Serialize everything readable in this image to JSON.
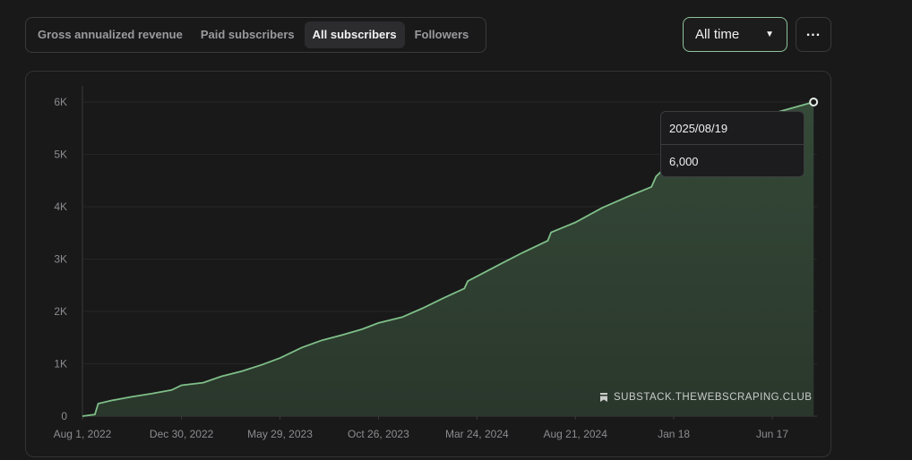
{
  "tabs": [
    {
      "label": "Gross annualized revenue",
      "active": false
    },
    {
      "label": "Paid subscribers",
      "active": false
    },
    {
      "label": "All subscribers",
      "active": true
    },
    {
      "label": "Followers",
      "active": false
    }
  ],
  "range_select": {
    "value": "All time"
  },
  "more_button": {
    "icon": "more-horizontal-icon"
  },
  "tooltip": {
    "date": "2025/08/19",
    "value": "6,000"
  },
  "watermark": {
    "text": "SUBSTACK.THEWEBSCRAPING.CLUB",
    "icon": "bookmark-icon"
  },
  "colors": {
    "line": "#7fbf88",
    "fill": "#2e3f31",
    "accent": "#8fc19a",
    "background": "#19191a"
  },
  "chart_data": {
    "type": "area",
    "title": "",
    "xlabel": "",
    "ylabel": "",
    "ylim": [
      0,
      6000
    ],
    "yticks": [
      0,
      1000,
      2000,
      3000,
      4000,
      5000,
      6000
    ],
    "ytick_labels": [
      "0",
      "1K",
      "2K",
      "3K",
      "4K",
      "5K",
      "6K"
    ],
    "xtick_dates": [
      "2022-08-01",
      "2022-12-30",
      "2023-05-29",
      "2023-10-26",
      "2024-03-24",
      "2024-08-21",
      "2025-01-18",
      "2025-06-17"
    ],
    "xtick_labels": [
      "Aug 1, 2022",
      "Dec 30, 2022",
      "May 29, 2023",
      "Oct 26, 2023",
      "Mar 24, 2024",
      "Aug 21, 2024",
      "Jan 18",
      "Jun 17"
    ],
    "grid": true,
    "series": [
      {
        "points": [
          [
            "2022-08-01",
            0
          ],
          [
            "2022-08-20",
            30
          ],
          [
            "2022-08-25",
            240
          ],
          [
            "2022-09-15",
            300
          ],
          [
            "2022-10-15",
            370
          ],
          [
            "2022-11-15",
            430
          ],
          [
            "2022-12-15",
            500
          ],
          [
            "2022-12-30",
            590
          ],
          [
            "2023-02-01",
            640
          ],
          [
            "2023-03-01",
            760
          ],
          [
            "2023-04-01",
            860
          ],
          [
            "2023-05-01",
            980
          ],
          [
            "2023-05-29",
            1110
          ],
          [
            "2023-07-01",
            1310
          ],
          [
            "2023-08-01",
            1450
          ],
          [
            "2023-09-01",
            1550
          ],
          [
            "2023-10-01",
            1660
          ],
          [
            "2023-10-26",
            1780
          ],
          [
            "2023-12-01",
            1890
          ],
          [
            "2024-01-01",
            2060
          ],
          [
            "2024-02-01",
            2250
          ],
          [
            "2024-03-05",
            2440
          ],
          [
            "2024-03-10",
            2580
          ],
          [
            "2024-03-24",
            2670
          ],
          [
            "2024-05-01",
            2920
          ],
          [
            "2024-06-01",
            3120
          ],
          [
            "2024-07-10",
            3350
          ],
          [
            "2024-07-15",
            3510
          ],
          [
            "2024-08-21",
            3700
          ],
          [
            "2024-10-01",
            3980
          ],
          [
            "2024-11-10",
            4200
          ],
          [
            "2024-12-15",
            4380
          ],
          [
            "2024-12-22",
            4580
          ],
          [
            "2025-01-18",
            4900
          ],
          [
            "2025-03-01",
            5280
          ],
          [
            "2025-04-15",
            5560
          ],
          [
            "2025-06-17",
            5780
          ],
          [
            "2025-08-19",
            6000
          ]
        ]
      }
    ],
    "highlight": {
      "date": "2025-08-19",
      "value": 6000
    }
  }
}
